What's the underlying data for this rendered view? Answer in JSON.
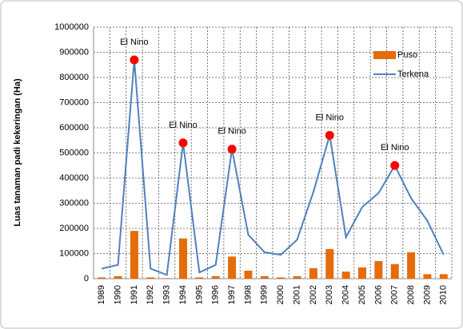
{
  "chart_data": {
    "type": "bar-line",
    "y_axis_label": "Luas tanaman padi kekeringan (Ha)",
    "categories": [
      "1989",
      "1990",
      "1991",
      "1992",
      "1993",
      "1994",
      "1995",
      "1996",
      "1997",
      "1998",
      "1999",
      "2000",
      "2001",
      "2002",
      "2003",
      "2004",
      "2005",
      "2006",
      "2007",
      "2008",
      "2009",
      "2010"
    ],
    "series": [
      {
        "name": "Puso",
        "type": "bar",
        "color": "#e46c0a",
        "values": [
          5000,
          10000,
          190000,
          5000,
          2000,
          160000,
          5000,
          10000,
          88000,
          32000,
          10000,
          5000,
          10000,
          42000,
          118000,
          28000,
          45000,
          70000,
          58000,
          105000,
          18000,
          18000
        ]
      },
      {
        "name": "Terkena",
        "type": "line",
        "color": "#4f81bd",
        "values": [
          40000,
          55000,
          870000,
          40000,
          15000,
          540000,
          25000,
          55000,
          515000,
          175000,
          105000,
          95000,
          155000,
          345000,
          570000,
          165000,
          285000,
          340000,
          450000,
          320000,
          230000,
          95000
        ]
      }
    ],
    "annotations": [
      {
        "text": "El Nino",
        "x": "1991",
        "color": "#ff0000"
      },
      {
        "text": "El Nino",
        "x": "1994",
        "color": "#ff0000"
      },
      {
        "text": "El Nino",
        "x": "1997",
        "color": "#ff0000"
      },
      {
        "text": "El Nino",
        "x": "2003",
        "color": "#ff0000"
      },
      {
        "text": "El Nino",
        "x": "2007",
        "color": "#ff0000"
      }
    ],
    "ylim": [
      0,
      1000000
    ],
    "yticks": [
      0,
      100000,
      200000,
      300000,
      400000,
      500000,
      600000,
      700000,
      800000,
      900000,
      1000000
    ],
    "grid": true,
    "legend": "upper right"
  }
}
